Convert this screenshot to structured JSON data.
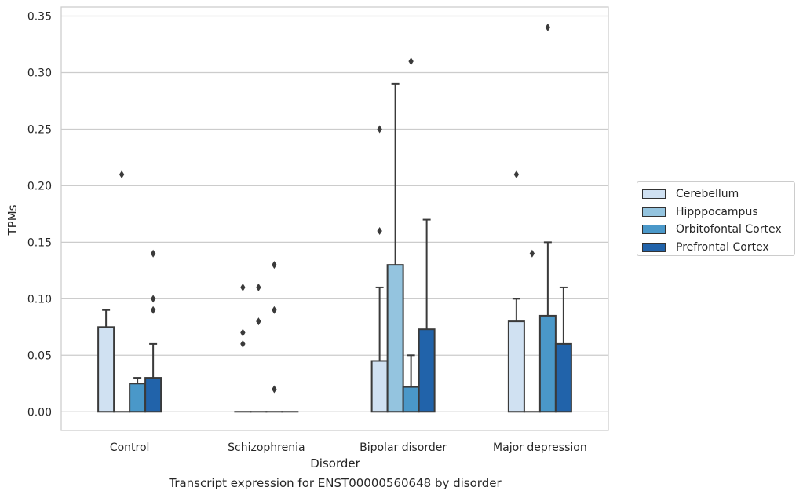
{
  "chart_data": {
    "type": "bar",
    "title": "",
    "caption": "Transcript expression for ENST00000560648 by disorder",
    "xlabel": "Disorder",
    "ylabel": "TPMs",
    "ylim": [
      -0.0165,
      0.358
    ],
    "yticks": [
      0.0,
      0.05,
      0.1,
      0.15,
      0.2,
      0.25,
      0.3,
      0.35
    ],
    "ytick_labels": [
      "0.00",
      "0.05",
      "0.10",
      "0.15",
      "0.20",
      "0.25",
      "0.30",
      "0.35"
    ],
    "grid": "horizontal",
    "legend_position": "right",
    "categories": [
      "Control",
      "Schizophrenia",
      "Bipolar disorder",
      "Major depression"
    ],
    "series": [
      {
        "name": "Cerebellum",
        "color": "#d0e1f2",
        "values": [
          0.075,
          0.0,
          0.045,
          0.08
        ],
        "whisker": [
          0.09,
          0.0,
          0.11,
          0.1
        ],
        "outliers": [
          [],
          [
            0.06,
            0.07,
            0.11
          ],
          [
            0.16,
            0.25
          ],
          [
            0.21
          ]
        ]
      },
      {
        "name": "Hipppocampus",
        "color": "#94c4df",
        "values": [
          0.0,
          0.0,
          0.13,
          0.0
        ],
        "whisker": [
          0.0,
          0.0,
          0.29,
          0.0
        ],
        "outliers": [
          [
            0.21
          ],
          [
            0.08,
            0.11
          ],
          [],
          [
            0.14
          ]
        ]
      },
      {
        "name": "Orbitofontal Cortex",
        "color": "#4a98c9",
        "values": [
          0.025,
          0.0,
          0.022,
          0.085
        ],
        "whisker": [
          0.03,
          0.0,
          0.05,
          0.15
        ],
        "outliers": [
          [],
          [
            0.02,
            0.09,
            0.13
          ],
          [
            0.31
          ],
          [
            0.34
          ]
        ]
      },
      {
        "name": "Prefrontal Cortex",
        "color": "#2163aa",
        "values": [
          0.03,
          0.0,
          0.073,
          0.06
        ],
        "whisker": [
          0.06,
          0.0,
          0.17,
          0.11
        ],
        "outliers": [
          [
            0.09,
            0.1,
            0.14
          ],
          [],
          [],
          []
        ]
      }
    ]
  }
}
